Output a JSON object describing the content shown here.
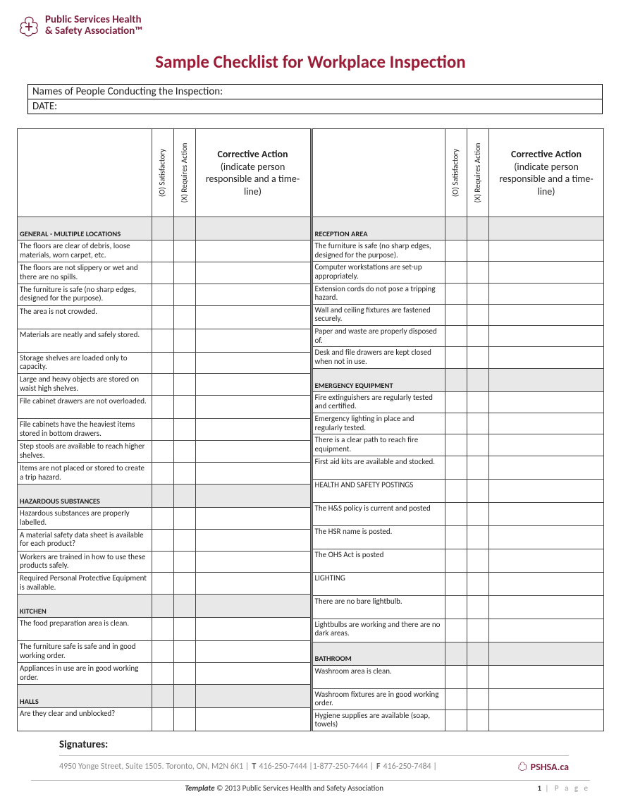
{
  "org": {
    "name_line1": "Public Services Health",
    "name_line2": "& Safety Association™",
    "brand_color": "#7a1f3d",
    "title_color": "#9b1c36"
  },
  "title": "Sample Checklist for Workplace Inspection",
  "info_rows": [
    "Names of People Conducting the Inspection:",
    "DATE:"
  ],
  "header": {
    "rot1": "(O) Satisfactory",
    "rot2": "(X) Requires Action",
    "action_bold": "Corrective Action",
    "action_rest": "(indicate person responsible and a time-line)"
  },
  "left_rows": [
    {
      "type": "section",
      "text": "GENERAL - MULTIPLE LOCATIONS"
    },
    {
      "type": "item",
      "text": "The floors are clear of debris, loose materials, worn carpet, etc."
    },
    {
      "type": "item",
      "text": "The floors are not slippery or wet and there are no spills."
    },
    {
      "type": "item",
      "text": "The furniture is safe (no sharp edges, designed for the purpose)."
    },
    {
      "type": "item",
      "text": "The area is not crowded.",
      "tall": true
    },
    {
      "type": "item",
      "text": "Materials are neatly and safely stored.",
      "tall": true
    },
    {
      "type": "item",
      "text": "Storage shelves are loaded only to capacity."
    },
    {
      "type": "item",
      "text": "Large and heavy objects are stored on waist high shelves."
    },
    {
      "type": "item",
      "text": "File cabinet drawers are not overloaded.",
      "tall": true
    },
    {
      "type": "item",
      "text": "File cabinets have the heaviest items stored in bottom drawers."
    },
    {
      "type": "item",
      "text": "Step stools are available to reach higher shelves."
    },
    {
      "type": "item",
      "text": "Items are not placed or stored to create a trip hazard."
    },
    {
      "type": "section",
      "text": "HAZARDOUS SUBSTANCES"
    },
    {
      "type": "item",
      "text": "Hazardous substances are properly labelled."
    },
    {
      "type": "item",
      "text": "A material safety data sheet is available for each product?"
    },
    {
      "type": "item",
      "text": "Workers are trained in how to use these products safely."
    },
    {
      "type": "item",
      "text": "Required Personal Protective Equipment is available."
    },
    {
      "type": "section",
      "text": "KITCHEN"
    },
    {
      "type": "item",
      "text": "The food preparation area is clean.",
      "tall": true
    },
    {
      "type": "item",
      "text": "The furniture safe is safe and in good working order."
    },
    {
      "type": "item",
      "text": "Appliances in use are in good working order."
    },
    {
      "type": "section",
      "text": "HALLS"
    },
    {
      "type": "item",
      "text": "Are they clear and unblocked?",
      "tall": true
    }
  ],
  "right_rows": [
    {
      "type": "section",
      "text": "RECEPTION AREA"
    },
    {
      "type": "item",
      "text": "The furniture is safe (no sharp edges, designed for the purpose)."
    },
    {
      "type": "item",
      "text": "Computer workstations are set-up appropriately."
    },
    {
      "type": "item",
      "text": "Extension cords do not pose a tripping hazard."
    },
    {
      "type": "item",
      "text": "Wall and ceiling fixtures are fastened securely."
    },
    {
      "type": "item",
      "text": "Paper and waste are properly disposed of."
    },
    {
      "type": "item",
      "text": "Desk and file drawers are kept closed when not in use."
    },
    {
      "type": "section",
      "text": "EMERGENCY EQUIPMENT"
    },
    {
      "type": "item",
      "text": "Fire extinguishers are regularly tested and certified."
    },
    {
      "type": "item",
      "text": "Emergency lighting in place and regularly tested."
    },
    {
      "type": "item",
      "text": "There is a clear path to reach fire equipment."
    },
    {
      "type": "item",
      "text": "First aid kits are available and stocked.",
      "tall": true
    },
    {
      "type": "item",
      "text": "HEALTH AND SAFETY POSTINGS",
      "tall": true
    },
    {
      "type": "item",
      "text": "The H&S policy is current and posted",
      "tall": true
    },
    {
      "type": "item",
      "text": "The HSR name is posted.",
      "tall": true
    },
    {
      "type": "item",
      "text": "The OHS Act is posted",
      "tall": true
    },
    {
      "type": "item",
      "text": "LIGHTING",
      "tall": true
    },
    {
      "type": "item",
      "text": "There are no bare lightbulb.",
      "tall": true
    },
    {
      "type": "item",
      "text": "Lightbulbs are working and there are no dark areas.",
      "tall": true
    },
    {
      "type": "section",
      "text": "BATHROOM"
    },
    {
      "type": "item",
      "text": "Washroom area is clean.",
      "tall": true
    },
    {
      "type": "item",
      "text": "Washroom fixtures are in good working order."
    },
    {
      "type": "item",
      "text": "Hygiene supplies are available (soap, towels)"
    }
  ],
  "signatures_label": "Signatures:",
  "footer": {
    "address": "4950 Yonge Street, Suite 1505. Toronto, ON, M2N 6K1 | ",
    "t_label": "T",
    "t_val": " 416-250-7444 |1-877-250-7444 | ",
    "f_label": "F",
    "f_val": " 416-250-7484 |",
    "brand": "PSHSA.ca",
    "template_line": "Template © 2013 Public Services Health and Safety Association",
    "page_num": "1",
    "page_word": " | P a g e"
  }
}
